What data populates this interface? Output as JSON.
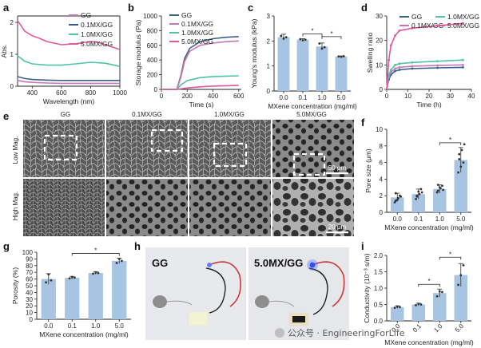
{
  "panel_labels": [
    "a",
    "b",
    "c",
    "d",
    "e",
    "f",
    "g",
    "h",
    "i"
  ],
  "colors": {
    "GG": "#c777b6",
    "0.1MX/GG": "#3b5f8f",
    "1.0MX/GG": "#4fc3a8",
    "5.0MX/GG": "#e058a0",
    "bar": "#a7c4e2",
    "dot": "#333333"
  },
  "sem": {
    "columns": [
      "GG",
      "0.1MX/GG",
      "1.0MX/GG",
      "5.0MX/GG"
    ],
    "rows": [
      "Low Mag.",
      "High Mag."
    ],
    "scale_low": "50 μm",
    "scale_high": "20 μm"
  },
  "photo": {
    "left": "GG",
    "right": "5.0MX/GG"
  },
  "watermark": "公众号 · EngineeringForLife",
  "chart_data": [
    {
      "panel": "a",
      "type": "line",
      "xlabel": "Wavelength (nm)",
      "ylabel": "Abs.",
      "xlim": [
        300,
        1000
      ],
      "ylim": [
        0,
        2.2
      ],
      "xticks": [
        400,
        600,
        800,
        1000
      ],
      "yticks": [
        0,
        1,
        2
      ],
      "legend_position": "top-right",
      "series": [
        {
          "name": "GG",
          "key": "GG",
          "x": [
            300,
            350,
            400,
            500,
            600,
            700,
            800,
            900,
            1000
          ],
          "y": [
            0.18,
            0.14,
            0.12,
            0.1,
            0.09,
            0.09,
            0.09,
            0.09,
            0.09
          ]
        },
        {
          "name": "0.1MX/GG",
          "key": "0.1MX/GG",
          "x": [
            300,
            350,
            400,
            500,
            600,
            700,
            800,
            900,
            1000
          ],
          "y": [
            0.3,
            0.24,
            0.21,
            0.19,
            0.18,
            0.18,
            0.18,
            0.18,
            0.18
          ]
        },
        {
          "name": "1.0MX/GG",
          "key": "1.0MX/GG",
          "x": [
            300,
            350,
            400,
            500,
            600,
            700,
            800,
            900,
            1000
          ],
          "y": [
            0.95,
            0.78,
            0.7,
            0.66,
            0.66,
            0.7,
            0.75,
            0.72,
            0.62
          ]
        },
        {
          "name": "5.0MX/GG",
          "key": "5.0MX/GG",
          "x": [
            300,
            320,
            350,
            400,
            450,
            500,
            600,
            700,
            800,
            850,
            900,
            1000
          ],
          "y": [
            2.05,
            1.92,
            1.72,
            1.58,
            1.5,
            1.4,
            1.3,
            1.33,
            1.4,
            1.38,
            1.3,
            1.15
          ]
        }
      ]
    },
    {
      "panel": "b",
      "type": "line",
      "xlabel": "Time (s)",
      "ylabel": "Storage modulus (Pa)",
      "xlim": [
        0,
        620
      ],
      "ylim": [
        0,
        1000
      ],
      "xticks": [
        0,
        200,
        400,
        600
      ],
      "yticks": [
        0,
        200,
        400,
        600,
        800,
        1000
      ],
      "legend_position": "top-left",
      "series": [
        {
          "name": "GG",
          "key": "0.1MX/GG",
          "x": [
            0,
            120,
            150,
            180,
            220,
            300,
            400,
            500,
            600
          ],
          "y": [
            0,
            0,
            180,
            420,
            560,
            650,
            690,
            710,
            720
          ]
        },
        {
          "name": "0.1MX/GG",
          "key": "GG",
          "x": [
            0,
            120,
            150,
            180,
            220,
            300,
            400,
            500,
            600
          ],
          "y": [
            0,
            0,
            160,
            380,
            520,
            600,
            630,
            650,
            660
          ]
        },
        {
          "name": "1.0MX/GG",
          "key": "1.0MX/GG",
          "x": [
            0,
            120,
            150,
            200,
            300,
            400,
            500,
            600
          ],
          "y": [
            0,
            0,
            60,
            120,
            160,
            175,
            180,
            185
          ]
        },
        {
          "name": "5.0MX/GG",
          "key": "5.0MX/GG",
          "x": [
            0,
            120,
            200,
            300,
            400,
            500,
            600
          ],
          "y": [
            0,
            0,
            20,
            35,
            45,
            50,
            55
          ]
        }
      ]
    },
    {
      "panel": "c",
      "type": "bar",
      "xlabel": "MXene concentration  (mg/ml)",
      "ylabel": "Young's modulus (kPa)",
      "categories": [
        "0.0",
        "0.1",
        "1.0",
        "5.0"
      ],
      "values": [
        2.15,
        2.05,
        1.78,
        1.38
      ],
      "errors": [
        0.12,
        0.04,
        0.14,
        0.02
      ],
      "points": [
        [
          2.2,
          2.1,
          2.15
        ],
        [
          2.07,
          2.03,
          2.05
        ],
        [
          1.9,
          1.7,
          1.75
        ],
        [
          1.38,
          1.37,
          1.39
        ]
      ],
      "ylim": [
        0,
        3
      ],
      "yticks": [
        0,
        1,
        2,
        3
      ],
      "significance": [
        {
          "from": 1,
          "to": 2,
          "label": "*"
        },
        {
          "from": 2,
          "to": 3,
          "label": "*"
        }
      ]
    },
    {
      "panel": "d",
      "type": "line",
      "xlabel": "Time (h)",
      "ylabel": "Swelling ratio",
      "xlim": [
        0,
        40
      ],
      "ylim": [
        0,
        30
      ],
      "xticks": [
        0,
        10,
        20,
        30,
        40
      ],
      "yticks": [
        0,
        10,
        20,
        30
      ],
      "legend_position": "top",
      "series": [
        {
          "name": "GG",
          "key": "0.1MX/GG",
          "x": [
            0,
            1,
            2,
            4,
            6,
            12,
            24,
            36
          ],
          "y": [
            0,
            4,
            6,
            7.5,
            8,
            8.5,
            8.8,
            9
          ]
        },
        {
          "name": "0.1MX/GG",
          "key": "GG",
          "x": [
            0,
            1,
            2,
            4,
            6,
            12,
            24,
            36
          ],
          "y": [
            0,
            5,
            7,
            8.5,
            9,
            9.5,
            9.8,
            10
          ]
        },
        {
          "name": "1.0MX/GG",
          "key": "1.0MX/GG",
          "x": [
            0,
            1,
            2,
            4,
            6,
            12,
            24,
            36
          ],
          "y": [
            0,
            6,
            8,
            10,
            10.5,
            11,
            11.5,
            12
          ]
        },
        {
          "name": "5.0MX/GG",
          "key": "5.0MX/GG",
          "x": [
            0,
            1,
            2,
            4,
            6,
            12,
            24,
            36
          ],
          "y": [
            0,
            12,
            18,
            22,
            24,
            25,
            26,
            27
          ]
        }
      ]
    },
    {
      "panel": "f",
      "type": "bar",
      "xlabel": "MXene concentration  (mg/ml)",
      "ylabel": "Pore size (μm)",
      "categories": [
        "0.0",
        "0.1",
        "1.0",
        "5.0"
      ],
      "values": [
        1.8,
        2.2,
        2.8,
        6.3
      ],
      "errors": [
        0.5,
        0.6,
        0.5,
        1.5
      ],
      "points": [
        [
          1.2,
          1.5,
          2.0,
          2.3,
          1.7,
          1.9,
          1.4
        ],
        [
          1.6,
          2.5,
          2.8,
          1.9,
          2.2,
          2.4,
          2.0
        ],
        [
          2.4,
          3.0,
          3.2,
          2.6,
          2.9,
          2.7,
          3.3
        ],
        [
          4.8,
          5.5,
          6.0,
          7.0,
          7.5,
          8.2,
          6.4
        ]
      ],
      "ylim": [
        0,
        10
      ],
      "yticks": [
        0,
        2,
        4,
        6,
        8,
        10
      ],
      "significance": [
        {
          "from": 2,
          "to": 3,
          "label": "*"
        }
      ]
    },
    {
      "panel": "g",
      "type": "bar",
      "xlabel": "MXene concentration  (mg/ml)",
      "ylabel": "Porosity (%)",
      "categories": [
        "0.0",
        "0.1",
        "1.0",
        "5.0"
      ],
      "values": [
        60,
        62,
        69,
        87
      ],
      "errors": [
        8,
        2,
        2,
        4
      ],
      "points": [
        [
          55,
          67,
          58
        ],
        [
          61,
          63,
          62
        ],
        [
          68,
          70,
          69
        ],
        [
          84,
          90,
          87
        ]
      ],
      "ylim": [
        0,
        100
      ],
      "yticks": [
        0,
        10,
        20,
        30,
        40,
        50,
        60,
        70,
        80,
        90,
        100
      ],
      "significance": [
        {
          "from": 1,
          "to": 3,
          "label": "*"
        }
      ]
    },
    {
      "panel": "i",
      "type": "bar",
      "xlabel": "MXene concentration  (mg/ml)",
      "ylabel": "Conductivity (10⁻³ s/m)",
      "categories": [
        "0.0",
        "0.1",
        "1.0",
        "5.0"
      ],
      "values": [
        0.42,
        0.5,
        0.85,
        1.4
      ],
      "errors": [
        0.04,
        0.04,
        0.12,
        0.35
      ],
      "points": [
        [
          0.4,
          0.44,
          0.42
        ],
        [
          0.48,
          0.52,
          0.5
        ],
        [
          0.75,
          0.9,
          0.88
        ],
        [
          1.1,
          1.4,
          1.7
        ]
      ],
      "ylim": [
        0,
        2.0
      ],
      "yticks": [
        0.0,
        0.5,
        1.0,
        1.5,
        2.0
      ],
      "significance": [
        {
          "from": 1,
          "to": 2,
          "label": "*"
        },
        {
          "from": 2,
          "to": 3,
          "label": "*"
        }
      ]
    }
  ]
}
